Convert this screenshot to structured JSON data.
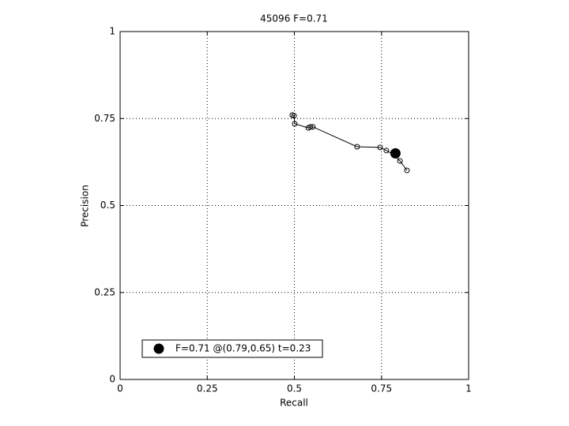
{
  "chart_data": {
    "type": "line",
    "title": "45096 F=0.71",
    "xlabel": "Recall",
    "ylabel": "Precision",
    "xlim": [
      0,
      1
    ],
    "ylim": [
      0,
      1
    ],
    "xticks": [
      0,
      0.25,
      0.5,
      0.75,
      1
    ],
    "yticks": [
      0,
      0.25,
      0.5,
      0.75,
      1
    ],
    "grid": true,
    "legend": "lower left",
    "series": [
      {
        "color": "#000000",
        "marker": "open-circle",
        "x": [
          0.494,
          0.499,
          0.501,
          0.54,
          0.546,
          0.553,
          0.68,
          0.746,
          0.764,
          0.785,
          0.803,
          0.823
        ],
        "values": [
          0.76,
          0.758,
          0.735,
          0.723,
          0.726,
          0.726,
          0.669,
          0.667,
          0.658,
          0.646,
          0.628,
          0.601
        ]
      },
      {
        "name": "F=0.71 @(0.79,0.65) t=0.23",
        "color": "#000000",
        "marker": "filled-circle",
        "x": [
          0.79
        ],
        "values": [
          0.65
        ]
      }
    ]
  }
}
